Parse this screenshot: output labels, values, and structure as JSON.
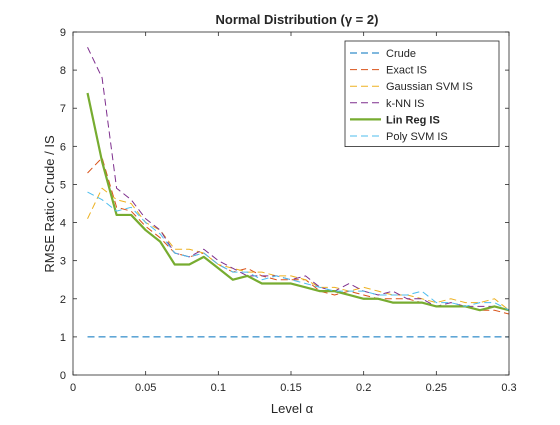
{
  "chart_data": {
    "type": "line",
    "title": "Normal Distribution (γ = 2)",
    "xlabel": "Level α",
    "ylabel": "RMSE Ratio: Crude / IS",
    "xlim": [
      0,
      0.3
    ],
    "ylim": [
      0,
      9
    ],
    "xticks": [
      0,
      0.05,
      0.1,
      0.15,
      0.2,
      0.25,
      0.3
    ],
    "xtick_labels": [
      "0",
      "0.05",
      "0.1",
      "0.15",
      "0.2",
      "0.25",
      "0.3"
    ],
    "yticks": [
      0,
      1,
      2,
      3,
      4,
      5,
      6,
      7,
      8,
      9
    ],
    "ytick_labels": [
      "0",
      "1",
      "2",
      "3",
      "4",
      "5",
      "6",
      "7",
      "8",
      "9"
    ],
    "grid": false,
    "legend_position": "top-right",
    "x": [
      0.01,
      0.02,
      0.03,
      0.04,
      0.05,
      0.06,
      0.07,
      0.08,
      0.09,
      0.1,
      0.11,
      0.12,
      0.13,
      0.14,
      0.15,
      0.16,
      0.17,
      0.18,
      0.19,
      0.2,
      0.21,
      0.22,
      0.23,
      0.24,
      0.25,
      0.26,
      0.27,
      0.28,
      0.29,
      0.3
    ],
    "series": [
      {
        "name": "Crude",
        "color": "#0072BD",
        "dash": "dash",
        "bold": false,
        "values": [
          1,
          1,
          1,
          1,
          1,
          1,
          1,
          1,
          1,
          1,
          1,
          1,
          1,
          1,
          1,
          1,
          1,
          1,
          1,
          1,
          1,
          1,
          1,
          1,
          1,
          1,
          1,
          1,
          1,
          1
        ]
      },
      {
        "name": "Exact IS",
        "color": "#D95319",
        "dash": "dash",
        "bold": false,
        "values": [
          5.3,
          5.7,
          4.4,
          4.3,
          3.9,
          3.6,
          3.2,
          3.1,
          3.2,
          2.9,
          2.7,
          2.8,
          2.6,
          2.5,
          2.5,
          2.5,
          2.2,
          2.1,
          2.2,
          2.1,
          2.0,
          2.0,
          2.0,
          1.9,
          1.8,
          1.8,
          1.8,
          1.7,
          1.7,
          1.6
        ]
      },
      {
        "name": "Gaussian SVM IS",
        "color": "#EDB120",
        "dash": "dash",
        "bold": false,
        "values": [
          4.1,
          4.9,
          4.6,
          4.5,
          4.0,
          3.8,
          3.3,
          3.3,
          3.2,
          2.9,
          2.8,
          2.7,
          2.7,
          2.6,
          2.6,
          2.5,
          2.3,
          2.3,
          2.2,
          2.3,
          2.2,
          2.1,
          2.1,
          2.0,
          1.9,
          2.0,
          1.9,
          1.9,
          2.0,
          1.7
        ]
      },
      {
        "name": "k-NN IS",
        "color": "#7E2F8E",
        "dash": "dash",
        "bold": false,
        "values": [
          8.6,
          7.8,
          4.9,
          4.6,
          4.1,
          3.8,
          3.2,
          3.1,
          3.3,
          3.0,
          2.8,
          2.6,
          2.6,
          2.6,
          2.5,
          2.6,
          2.3,
          2.2,
          2.4,
          2.2,
          2.1,
          2.2,
          2.0,
          2.0,
          1.8,
          1.9,
          1.8,
          1.8,
          1.8,
          1.7
        ]
      },
      {
        "name": "Lin Reg IS",
        "color": "#77AC30",
        "dash": "solid",
        "bold": true,
        "values": [
          7.4,
          5.6,
          4.2,
          4.2,
          3.8,
          3.5,
          2.9,
          2.9,
          3.1,
          2.8,
          2.5,
          2.6,
          2.4,
          2.4,
          2.4,
          2.3,
          2.2,
          2.2,
          2.1,
          2.0,
          2.0,
          1.9,
          1.9,
          1.9,
          1.8,
          1.8,
          1.8,
          1.7,
          1.8,
          1.7
        ]
      },
      {
        "name": "Poly SVM IS",
        "color": "#4DBEEE",
        "dash": "dash",
        "bold": false,
        "values": [
          4.8,
          4.6,
          4.3,
          4.4,
          4.0,
          3.7,
          3.2,
          3.1,
          3.2,
          2.9,
          2.7,
          2.7,
          2.5,
          2.6,
          2.5,
          2.4,
          2.3,
          2.2,
          2.2,
          2.2,
          2.1,
          2.1,
          2.1,
          2.2,
          1.9,
          1.9,
          1.8,
          1.9,
          1.9,
          1.7
        ]
      }
    ]
  }
}
